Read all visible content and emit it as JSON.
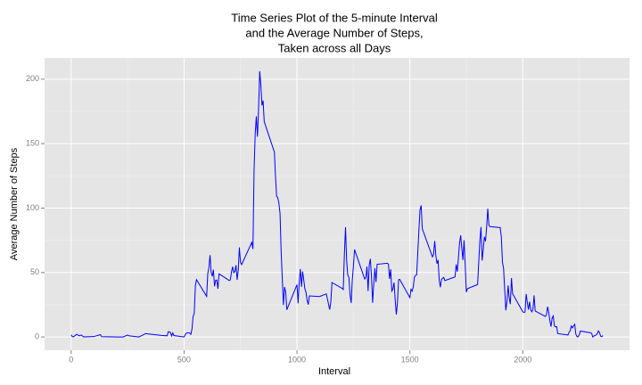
{
  "chart_data": {
    "type": "line",
    "title": [
      "Time Series Plot of the 5-minute Interval",
      "and the Average Number of Steps,",
      "Taken across all Days"
    ],
    "xlabel": "Interval",
    "ylabel": "Average Number of Steps",
    "x": [
      0,
      5,
      10,
      25,
      35,
      45,
      55,
      100,
      130,
      135,
      200,
      230,
      250,
      255,
      300,
      330,
      400,
      425,
      430,
      440,
      445,
      450,
      455,
      500,
      505,
      510,
      520,
      525,
      530,
      535,
      540,
      545,
      550,
      555,
      600,
      605,
      610,
      615,
      620,
      625,
      630,
      635,
      640,
      645,
      650,
      655,
      700,
      705,
      710,
      715,
      720,
      725,
      730,
      735,
      740,
      745,
      750,
      755,
      800,
      805,
      810,
      815,
      820,
      825,
      830,
      835,
      840,
      845,
      850,
      855,
      900,
      905,
      910,
      915,
      920,
      925,
      930,
      935,
      940,
      945,
      950,
      955,
      1000,
      1005,
      1010,
      1015,
      1020,
      1025,
      1030,
      1035,
      1040,
      1045,
      1050,
      1055,
      1100,
      1130,
      1145,
      1150,
      1155,
      1200,
      1205,
      1210,
      1215,
      1220,
      1225,
      1230,
      1235,
      1240,
      1245,
      1250,
      1255,
      1300,
      1305,
      1310,
      1315,
      1320,
      1325,
      1330,
      1335,
      1340,
      1345,
      1350,
      1355,
      1400,
      1405,
      1410,
      1415,
      1420,
      1425,
      1430,
      1435,
      1440,
      1445,
      1450,
      1455,
      1500,
      1505,
      1510,
      1515,
      1520,
      1525,
      1530,
      1535,
      1540,
      1545,
      1550,
      1555,
      1600,
      1605,
      1610,
      1615,
      1620,
      1625,
      1630,
      1635,
      1640,
      1645,
      1650,
      1655,
      1700,
      1705,
      1710,
      1715,
      1720,
      1725,
      1730,
      1735,
      1740,
      1745,
      1750,
      1755,
      1800,
      1805,
      1810,
      1815,
      1820,
      1825,
      1830,
      1835,
      1840,
      1845,
      1850,
      1855,
      1900,
      1905,
      1910,
      1915,
      1920,
      1925,
      1930,
      1935,
      1940,
      1945,
      1950,
      1955,
      2000,
      2005,
      2010,
      2015,
      2020,
      2025,
      2030,
      2035,
      2040,
      2045,
      2050,
      2055,
      2100,
      2105,
      2110,
      2115,
      2120,
      2125,
      2130,
      2135,
      2140,
      2145,
      2150,
      2155,
      2200,
      2205,
      2210,
      2215,
      2220,
      2225,
      2230,
      2235,
      2240,
      2245,
      2250,
      2255,
      2300,
      2305,
      2310,
      2315,
      2320,
      2325,
      2330,
      2335,
      2340,
      2345,
      2350,
      2355
    ],
    "values": [
      1.7,
      0.3,
      0.1,
      2.1,
      0.9,
      1.5,
      0.1,
      0.3,
      1.8,
      0.2,
      0,
      0,
      1.5,
      0.9,
      0,
      2.6,
      1.2,
      0.9,
      4.1,
      3.5,
      0.8,
      3.1,
      1.1,
      0,
      1.6,
      3,
      3.3,
      3,
      2.1,
      6.1,
      16,
      18.3,
      39.5,
      44.5,
      31.5,
      49.3,
      53.8,
      63.5,
      50,
      47.1,
      52.2,
      39.3,
      44,
      44.2,
      37.4,
      49,
      43.8,
      44.4,
      50.5,
      54.5,
      49.9,
      50.9,
      55.7,
      44.3,
      52.3,
      69.5,
      57.8,
      56.2,
      73.4,
      68.2,
      129.4,
      157.5,
      171.2,
      155.4,
      177.3,
      206.2,
      195.9,
      179.6,
      183.4,
      167,
      143.5,
      124,
      109.1,
      108.1,
      103.7,
      95.9,
      66.2,
      45.2,
      24.8,
      38.8,
      35,
      21.1,
      40.6,
      26.1,
      42.4,
      52.7,
      38.9,
      50.8,
      44.3,
      37.4,
      34.7,
      28.3,
      25.1,
      31.9,
      31.4,
      33.4,
      21.2,
      27.5,
      42.2,
      37.7,
      36.8,
      64.4,
      85.2,
      59.5,
      47.9,
      46.4,
      32.7,
      26.3,
      44.1,
      55,
      67.8,
      45,
      46.2,
      54.6,
      35.6,
      55.8,
      60.6,
      47.2,
      26.5,
      41,
      53.4,
      42.6,
      56.4,
      57.2,
      56.5,
      45.1,
      52.5,
      35.6,
      37.3,
      42.2,
      28.5,
      17.4,
      26.5,
      44.4,
      44.7,
      30.5,
      37,
      35.5,
      38.8,
      46.3,
      47.8,
      48.1,
      65.3,
      82.9,
      98.7,
      102.1,
      84,
      62.1,
      64.1,
      74.5,
      63.2,
      56.9,
      59.8,
      43.9,
      38.6,
      44.7,
      45.5,
      46.2,
      43.7,
      46.6,
      56.3,
      50.7,
      61.2,
      72.7,
      78.9,
      68.9,
      59.7,
      75.1,
      56.5,
      34.8,
      37.5,
      40.7,
      58,
      74.7,
      85.3,
      59.3,
      67.8,
      77.7,
      74.2,
      85.3,
      99.5,
      86.6,
      85.6,
      84.9,
      77.8,
      58,
      53.4,
      36.3,
      20.7,
      27.4,
      40,
      30.2,
      25.5,
      45.7,
      33.5,
      19.6,
      19,
      19.3,
      33.3,
      26.8,
      21.2,
      27.3,
      21.3,
      19.5,
      21.3,
      32.3,
      20.2,
      15.9,
      17.2,
      23.5,
      19.2,
      12.5,
      8,
      14.7,
      16.3,
      8.7,
      7.8,
      8.1,
      2.6,
      1.5,
      3.7,
      4.8,
      8.5,
      7.1,
      8.7,
      9.8,
      2.2,
      0.3,
      0.1,
      1.6,
      4.6,
      3.3,
      2.8,
      0,
      0.8,
      1,
      1.6,
      2.6,
      4.7,
      3.3,
      0.6,
      0.2,
      1.1
    ],
    "color": "#0000ff",
    "xlim": [
      -117.75,
      2472.75
    ],
    "xticks": [
      0,
      500,
      1000,
      1500,
      2000
    ],
    "minor_xticks": [
      250,
      750,
      1250,
      1750,
      2250
    ],
    "ylim": [
      -10.3,
      216.5
    ],
    "yticks": [
      0,
      50,
      100,
      150,
      200
    ],
    "minor_yticks": [
      25,
      75,
      125,
      175
    ],
    "grid": true
  }
}
